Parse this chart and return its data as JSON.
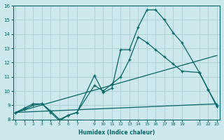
{
  "xlabel": "Humidex (Indice chaleur)",
  "bg_color": "#cce8ed",
  "grid_color": "#afd0d6",
  "line_color": "#006666",
  "x_ticks": [
    0,
    1,
    2,
    3,
    4,
    5,
    6,
    7,
    9,
    10,
    11,
    12,
    13,
    14,
    15,
    16,
    17,
    18,
    19,
    21,
    22,
    23
  ],
  "ylim": [
    8,
    16
  ],
  "xlim": [
    -0.3,
    23.3
  ],
  "line1_x": [
    0,
    1,
    2,
    3,
    4,
    5,
    6,
    7,
    9,
    10,
    11,
    12,
    13,
    14,
    15,
    16,
    17,
    18,
    19,
    21,
    22,
    23
  ],
  "line1_y": [
    8.5,
    8.8,
    9.1,
    9.1,
    8.5,
    7.9,
    8.3,
    8.5,
    11.1,
    9.9,
    10.2,
    12.9,
    12.9,
    14.5,
    15.7,
    15.7,
    15.0,
    14.1,
    13.4,
    11.3,
    10.1,
    9.0
  ],
  "line2_x": [
    0,
    1,
    2,
    3,
    4,
    5,
    6,
    7,
    9,
    10,
    11,
    12,
    13,
    14,
    15,
    16,
    17,
    18,
    19,
    21,
    22,
    23
  ],
  "line2_y": [
    8.5,
    8.7,
    9.0,
    9.1,
    8.6,
    8.0,
    8.3,
    8.5,
    10.4,
    10.0,
    10.5,
    11.0,
    12.2,
    13.8,
    13.4,
    12.9,
    12.4,
    11.9,
    11.4,
    11.3,
    10.1,
    8.9
  ],
  "line3_x": [
    0,
    23
  ],
  "line3_y": [
    8.5,
    12.5
  ],
  "line4_x": [
    0,
    23
  ],
  "line4_y": [
    8.5,
    9.1
  ]
}
